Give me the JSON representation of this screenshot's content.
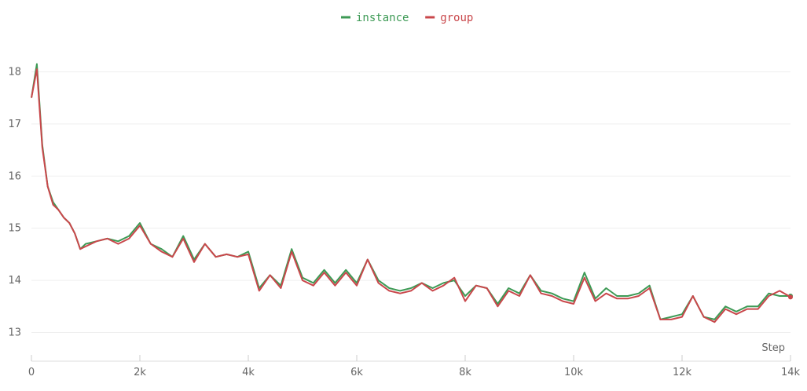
{
  "chart_data": {
    "type": "line",
    "xlabel": "Step",
    "ylabel": "",
    "xlim": [
      0,
      14000
    ],
    "ylim": [
      12.45,
      18.85
    ],
    "x_ticks": [
      0,
      2000,
      4000,
      6000,
      8000,
      10000,
      12000,
      14000
    ],
    "x_tick_labels": [
      "0",
      "2k",
      "4k",
      "6k",
      "8k",
      "10k",
      "12k",
      "14k"
    ],
    "y_ticks": [
      13,
      14,
      15,
      16,
      17,
      18
    ],
    "y_tick_labels": [
      "13",
      "14",
      "15",
      "16",
      "17",
      "18"
    ],
    "grid": true,
    "legend_position": "top-center",
    "series": [
      {
        "name": "instance",
        "color": "#3d9a55",
        "x": [
          0,
          100,
          200,
          300,
          400,
          500,
          600,
          700,
          800,
          900,
          1000,
          1200,
          1400,
          1600,
          1800,
          2000,
          2200,
          2400,
          2600,
          2800,
          3000,
          3200,
          3400,
          3600,
          3800,
          4000,
          4200,
          4400,
          4600,
          4800,
          5000,
          5200,
          5400,
          5600,
          5800,
          6000,
          6200,
          6400,
          6600,
          6800,
          7000,
          7200,
          7400,
          7600,
          7800,
          8000,
          8200,
          8400,
          8600,
          8800,
          9000,
          9200,
          9400,
          9600,
          9800,
          10000,
          10200,
          10400,
          10600,
          10800,
          11000,
          11200,
          11400,
          11600,
          11800,
          12000,
          12200,
          12400,
          12600,
          12800,
          13000,
          13200,
          13400,
          13600,
          13800,
          14000
        ],
        "values": [
          17.5,
          18.15,
          16.6,
          15.8,
          15.5,
          15.35,
          15.2,
          15.1,
          14.9,
          14.6,
          14.7,
          14.75,
          14.8,
          14.75,
          14.85,
          15.1,
          14.7,
          14.6,
          14.45,
          14.85,
          14.4,
          14.7,
          14.45,
          14.5,
          14.45,
          14.55,
          13.85,
          14.1,
          13.9,
          14.6,
          14.05,
          13.95,
          14.2,
          13.95,
          14.2,
          13.95,
          14.4,
          14.0,
          13.85,
          13.8,
          13.85,
          13.95,
          13.85,
          13.95,
          14.0,
          13.7,
          13.9,
          13.85,
          13.55,
          13.85,
          13.75,
          14.1,
          13.8,
          13.75,
          13.65,
          13.6,
          14.15,
          13.65,
          13.85,
          13.7,
          13.7,
          13.75,
          13.9,
          13.25,
          13.3,
          13.35,
          13.7,
          13.3,
          13.25,
          13.5,
          13.4,
          13.5,
          13.5,
          13.75,
          13.7,
          13.7
        ]
      },
      {
        "name": "group",
        "color": "#c9474b",
        "x": [
          0,
          100,
          200,
          300,
          400,
          500,
          600,
          700,
          800,
          900,
          1000,
          1200,
          1400,
          1600,
          1800,
          2000,
          2200,
          2400,
          2600,
          2800,
          3000,
          3200,
          3400,
          3600,
          3800,
          4000,
          4200,
          4400,
          4600,
          4800,
          5000,
          5200,
          5400,
          5600,
          5800,
          6000,
          6200,
          6400,
          6600,
          6800,
          7000,
          7200,
          7400,
          7600,
          7800,
          8000,
          8200,
          8400,
          8600,
          8800,
          9000,
          9200,
          9400,
          9600,
          9800,
          10000,
          10200,
          10400,
          10600,
          10800,
          11000,
          11200,
          11400,
          11600,
          11800,
          12000,
          12200,
          12400,
          12600,
          12800,
          13000,
          13200,
          13400,
          13600,
          13800,
          14000
        ],
        "values": [
          17.5,
          18.05,
          16.55,
          15.8,
          15.45,
          15.35,
          15.2,
          15.1,
          14.9,
          14.6,
          14.65,
          14.75,
          14.8,
          14.7,
          14.8,
          15.05,
          14.7,
          14.55,
          14.45,
          14.8,
          14.35,
          14.7,
          14.45,
          14.5,
          14.45,
          14.5,
          13.8,
          14.1,
          13.85,
          14.55,
          14.0,
          13.9,
          14.15,
          13.9,
          14.15,
          13.9,
          14.4,
          13.95,
          13.8,
          13.75,
          13.8,
          13.95,
          13.8,
          13.9,
          14.05,
          13.6,
          13.9,
          13.85,
          13.5,
          13.8,
          13.7,
          14.1,
          13.75,
          13.7,
          13.6,
          13.55,
          14.05,
          13.6,
          13.75,
          13.65,
          13.65,
          13.7,
          13.85,
          13.25,
          13.25,
          13.3,
          13.7,
          13.3,
          13.2,
          13.45,
          13.35,
          13.45,
          13.45,
          13.7,
          13.8,
          13.68
        ]
      }
    ]
  }
}
